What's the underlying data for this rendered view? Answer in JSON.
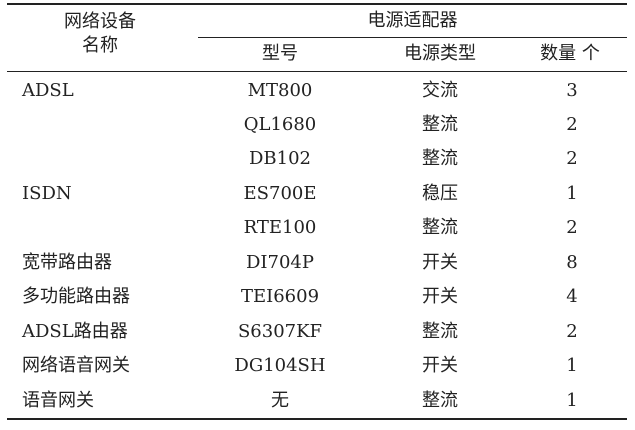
{
  "table": {
    "header": {
      "device_line1": "网络设备",
      "device_line2": "名称",
      "adapter_group": "电源适配器",
      "model": "型号",
      "power_type": "电源类型",
      "count": "数量 个"
    },
    "rows": [
      {
        "device": "ADSL",
        "model": "MT800",
        "power_type": "交流",
        "count": "3"
      },
      {
        "device": "",
        "model": "QL1680",
        "power_type": "整流",
        "count": "2"
      },
      {
        "device": "",
        "model": "DB102",
        "power_type": "整流",
        "count": "2"
      },
      {
        "device": "ISDN",
        "model": "ES700E",
        "power_type": "稳压",
        "count": "1"
      },
      {
        "device": "",
        "model": "RTE100",
        "power_type": "整流",
        "count": "2"
      },
      {
        "device": "宽带路由器",
        "model": "DI704P",
        "power_type": "开关",
        "count": "8"
      },
      {
        "device": "多功能路由器",
        "model": "TEI6609",
        "power_type": "开关",
        "count": "4"
      },
      {
        "device": "ADSL路由器",
        "model": "S6307KF",
        "power_type": "整流",
        "count": "2"
      },
      {
        "device": "网络语音网关",
        "model": "DG104SH",
        "power_type": "开关",
        "count": "1"
      },
      {
        "device": "语音网关",
        "model": "无",
        "power_type": "整流",
        "count": "1"
      }
    ]
  }
}
